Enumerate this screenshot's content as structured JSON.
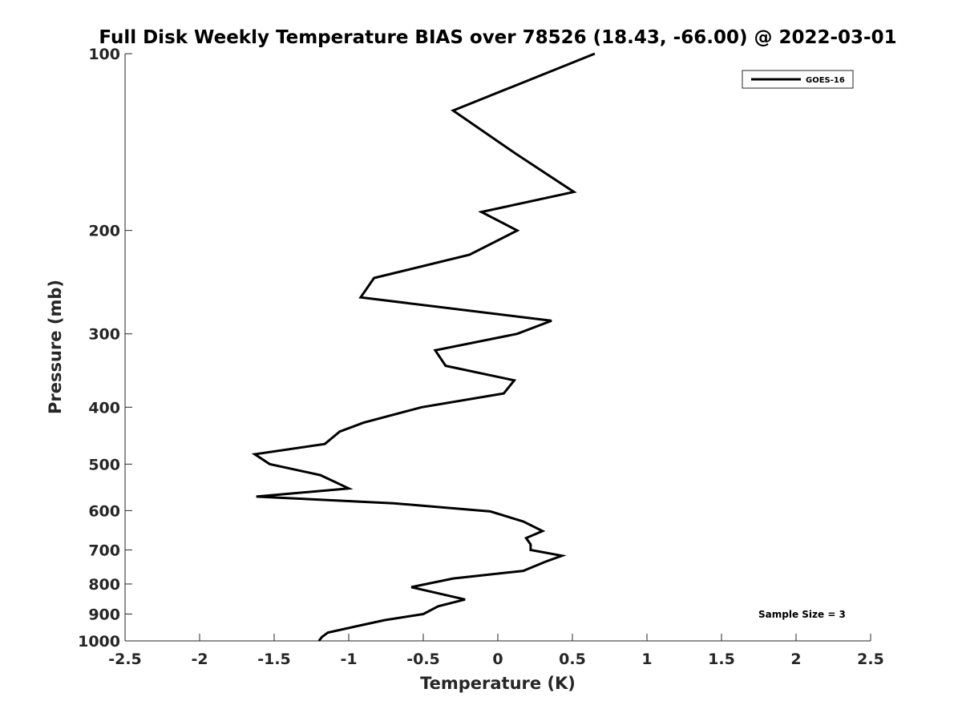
{
  "chart_data": {
    "type": "line",
    "title": "Full Disk Weekly Temperature BIAS over 78526 (18.43, -66.00) @ 2022-03-01",
    "xlabel": "Temperature (K)",
    "ylabel": "Pressure (mb)",
    "xlim": [
      -2.5,
      2.5
    ],
    "ylim": [
      1000,
      100
    ],
    "yscale": "log",
    "xticks": [
      -2.5,
      -2,
      -1.5,
      -1,
      -0.5,
      0,
      0.5,
      1,
      1.5,
      2,
      2.5
    ],
    "xtick_labels": [
      "-2.5",
      "-2",
      "-1.5",
      "-1",
      "-0.5",
      "0",
      "0.5",
      "1",
      "1.5",
      "2",
      "2.5"
    ],
    "yticks": [
      100,
      200,
      300,
      400,
      500,
      600,
      700,
      800,
      900,
      1000
    ],
    "ytick_labels": [
      "100",
      "200",
      "300",
      "400",
      "500",
      "600",
      "700",
      "800",
      "900",
      "1000"
    ],
    "grid": false,
    "legend_position": "top-right",
    "series": [
      {
        "name": "GOES-16",
        "color": "#000000",
        "points": [
          {
            "x": 0.65,
            "p": 100
          },
          {
            "x": -0.3,
            "p": 125
          },
          {
            "x": 0.12,
            "p": 148
          },
          {
            "x": 0.51,
            "p": 172
          },
          {
            "x": -0.11,
            "p": 186
          },
          {
            "x": 0.13,
            "p": 200
          },
          {
            "x": -0.19,
            "p": 220
          },
          {
            "x": -0.83,
            "p": 241
          },
          {
            "x": -0.92,
            "p": 260
          },
          {
            "x": 0.36,
            "p": 285
          },
          {
            "x": 0.13,
            "p": 300
          },
          {
            "x": -0.42,
            "p": 320
          },
          {
            "x": -0.35,
            "p": 340
          },
          {
            "x": 0.11,
            "p": 360
          },
          {
            "x": 0.04,
            "p": 379
          },
          {
            "x": -0.51,
            "p": 400
          },
          {
            "x": -0.9,
            "p": 425
          },
          {
            "x": -1.06,
            "p": 440
          },
          {
            "x": -1.16,
            "p": 462
          },
          {
            "x": -1.63,
            "p": 481
          },
          {
            "x": -1.53,
            "p": 500
          },
          {
            "x": -1.19,
            "p": 522
          },
          {
            "x": -1.0,
            "p": 550
          },
          {
            "x": -1.62,
            "p": 568
          },
          {
            "x": -0.7,
            "p": 583
          },
          {
            "x": -0.05,
            "p": 602
          },
          {
            "x": 0.17,
            "p": 626
          },
          {
            "x": 0.3,
            "p": 650
          },
          {
            "x": 0.19,
            "p": 668
          },
          {
            "x": 0.22,
            "p": 685
          },
          {
            "x": 0.22,
            "p": 700
          },
          {
            "x": 0.43,
            "p": 716
          },
          {
            "x": 0.32,
            "p": 733
          },
          {
            "x": 0.17,
            "p": 760
          },
          {
            "x": -0.3,
            "p": 783
          },
          {
            "x": -0.58,
            "p": 810
          },
          {
            "x": -0.22,
            "p": 850
          },
          {
            "x": -0.4,
            "p": 873
          },
          {
            "x": -0.5,
            "p": 900
          },
          {
            "x": -0.76,
            "p": 922
          },
          {
            "x": -0.93,
            "p": 942
          },
          {
            "x": -1.14,
            "p": 968
          },
          {
            "x": -1.18,
            "p": 985
          },
          {
            "x": -1.2,
            "p": 1000
          }
        ]
      }
    ],
    "annotations": [
      {
        "text": "Sample Size = 3",
        "position": "bottom-right"
      }
    ]
  }
}
